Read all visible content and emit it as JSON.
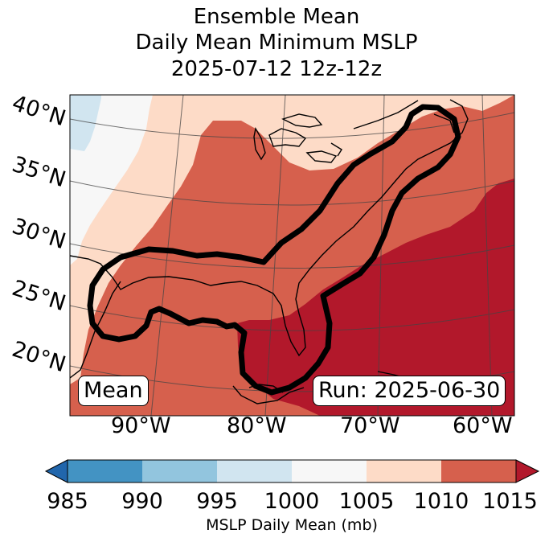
{
  "title": {
    "line1": "Ensemble Mean",
    "line2": "Daily Mean Minimum MSLP",
    "line3": "2025-07-12 12z-12z"
  },
  "map": {
    "lat_labels": [
      "40°N",
      "35°N",
      "30°N",
      "25°N",
      "20°N"
    ],
    "lon_labels": [
      "90°W",
      "80°W",
      "70°W",
      "60°W"
    ],
    "mean_label": "Mean",
    "run_label": "Run: 2025-06-30"
  },
  "colorbar": {
    "ticks": [
      "985",
      "990",
      "995",
      "1000",
      "1005",
      "1010",
      "1015"
    ],
    "label": "MSLP Daily Mean (mb)",
    "colors": {
      "under": "#2166ac",
      "985_990": "#4393c3",
      "990_995": "#92c5de",
      "995_1000": "#d1e5f0",
      "1000_1005": "#f7f7f7",
      "1005_1010": "#fddbc7",
      "1010_1015": "#d6604d",
      "over": "#b2182b"
    }
  }
}
